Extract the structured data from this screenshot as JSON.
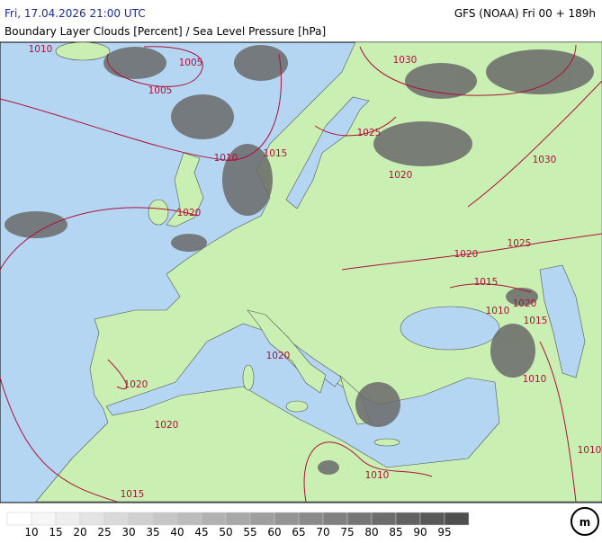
{
  "header": {
    "time": "Fri, 17.04.2026 21:00 UTC",
    "model": "GFS (NOAA) Fri 00 + 189h",
    "title": "Boundary Layer Clouds [Percent] / Sea Level Pressure [hPa]"
  },
  "isobar_labels": [
    "1010",
    "1005",
    "1005",
    "1030",
    "1010",
    "1015",
    "1025",
    "1020",
    "1030",
    "1020",
    "1025",
    "1020",
    "1015",
    "1010",
    "1020",
    "1015",
    "1020",
    "1020",
    "1010",
    "1020",
    "1010",
    "1010",
    "1015"
  ],
  "legend": {
    "levels": [
      10,
      15,
      20,
      25,
      30,
      35,
      40,
      45,
      50,
      55,
      60,
      65,
      70,
      75,
      80,
      85,
      90,
      95
    ],
    "colors": [
      "#ffffff",
      "#f6f6f6",
      "#eeeeee",
      "#e4e4e4",
      "#dadada",
      "#d0d0d0",
      "#c6c6c6",
      "#bcbcbc",
      "#b2b2b2",
      "#a8a8a8",
      "#9e9e9e",
      "#949494",
      "#8a8a8a",
      "#808080",
      "#767676",
      "#6c6c6c",
      "#626262",
      "#585858",
      "#4e4e4e"
    ]
  }
}
